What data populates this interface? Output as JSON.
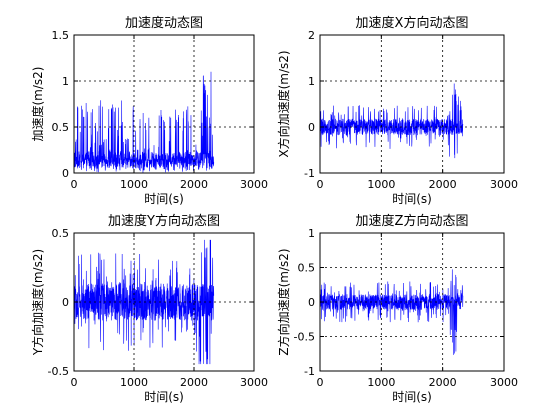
{
  "figure": {
    "background": "#ffffff",
    "line_color": "#0000ff",
    "axis_color": "#000000"
  },
  "chart_data": [
    {
      "type": "line",
      "title": "加速度动态图",
      "xlabel": "时间(s)",
      "ylabel": "加速度(m/s2)",
      "xlim": [
        0,
        3000
      ],
      "ylim": [
        0,
        1.5
      ],
      "xticks": [
        0,
        1000,
        2000,
        3000
      ],
      "yticks": [
        0,
        0.5,
        1,
        1.5
      ],
      "ytick_labels": [
        "0",
        "0.5",
        "1",
        "1.5"
      ],
      "grid": true,
      "series": [
        {
          "color": "#0000ff",
          "x": [
            0,
            2330
          ],
          "envelope": {
            "baseline": 0.12,
            "typical_peak": 0.5,
            "max": 1.1
          }
        }
      ]
    },
    {
      "type": "line",
      "title": "加速度X方向动态图",
      "xlabel": "时间(s)",
      "ylabel": "X方向加速度(m/s2)",
      "xlim": [
        0,
        3000
      ],
      "ylim": [
        -1,
        2
      ],
      "xticks": [
        0,
        1000,
        2000,
        3000
      ],
      "yticks": [
        -1,
        0,
        1,
        2
      ],
      "ytick_labels": [
        "-1",
        "0",
        "1",
        "2"
      ],
      "grid": true,
      "series": [
        {
          "color": "#0000ff",
          "x": [
            0,
            2330
          ],
          "envelope": {
            "baseline": 0.0,
            "typical_peak": 0.4,
            "max": 1.0,
            "min": -0.8
          }
        }
      ]
    },
    {
      "type": "line",
      "title": "加速度Y方向动态图",
      "xlabel": "时间(s)",
      "ylabel": "Y方向加速度(m/s2)",
      "xlim": [
        0,
        3000
      ],
      "ylim": [
        -0.5,
        0.5
      ],
      "xticks": [
        0,
        1000,
        2000,
        3000
      ],
      "yticks": [
        -0.5,
        0,
        0.5
      ],
      "ytick_labels": [
        "-0.5",
        "0",
        "0.5"
      ],
      "grid": true,
      "series": [
        {
          "color": "#0000ff",
          "x": [
            0,
            2330
          ],
          "envelope": {
            "baseline": 0.0,
            "typical_peak": 0.3,
            "max": 0.45,
            "min": -0.45
          }
        }
      ]
    },
    {
      "type": "line",
      "title": "加速度Z方向动态图",
      "xlabel": "时间(s)",
      "ylabel": "Z方向加速度(m/s2)",
      "xlim": [
        0,
        3000
      ],
      "ylim": [
        -1,
        1
      ],
      "xticks": [
        0,
        1000,
        2000,
        3000
      ],
      "yticks": [
        -1,
        -0.5,
        0,
        0.5,
        1
      ],
      "ytick_labels": [
        "-1",
        "-0.5",
        "0",
        "0.5",
        "1"
      ],
      "grid": true,
      "series": [
        {
          "color": "#0000ff",
          "x": [
            0,
            2330
          ],
          "envelope": {
            "baseline": 0.0,
            "typical_peak": 0.25,
            "max": 0.5,
            "min": -0.8
          }
        }
      ]
    }
  ]
}
